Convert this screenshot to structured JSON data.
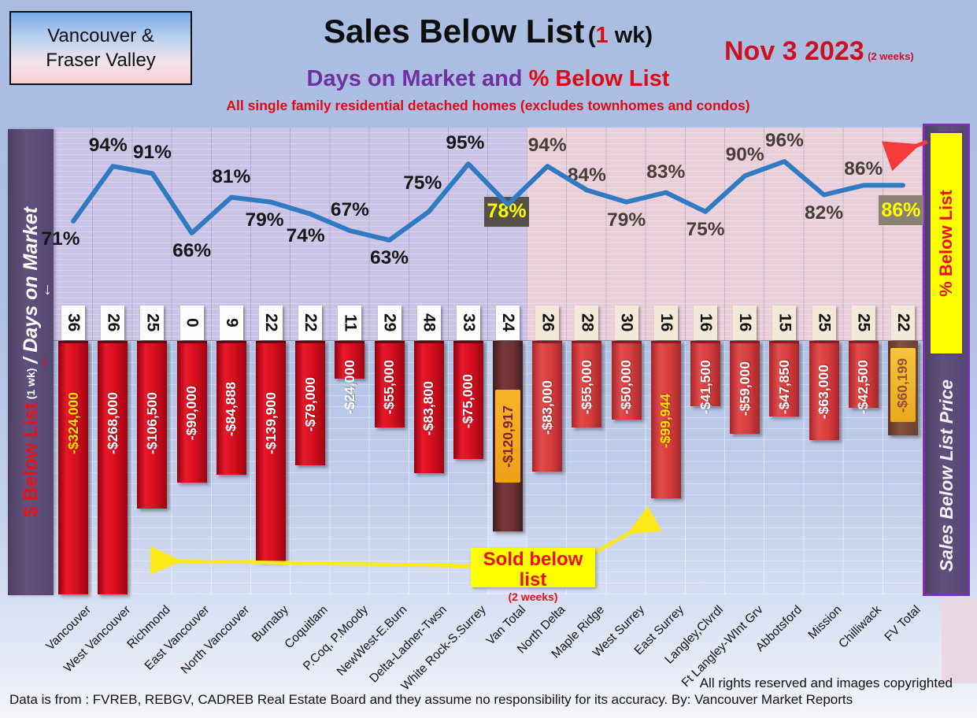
{
  "header": {
    "region_line1": "Vancouver &",
    "region_line2": "Fraser Valley",
    "title_main": "Sales Below List",
    "title_paren_pre": "(",
    "title_week_num": "1",
    "title_paren_post": " wk)",
    "date": "Nov 3  2023",
    "date_note": "(2 weeks)",
    "subtitle_left": "Days on Market and ",
    "subtitle_right": "% Below List",
    "tagline": "All single family residential detached homes (excludes townhomes and condos)"
  },
  "axes": {
    "left_red": "$ Below List",
    "left_small": "(1 wk)",
    "left_white": "/ Days on Market",
    "right_yellow": "% Below List",
    "right_white": "Sales Below List Price"
  },
  "callout": {
    "line1": "Sold below list",
    "line2": "(2 weeks)"
  },
  "footer": {
    "rights": "All rights reserved and  images copyrighted",
    "source": "Data is from : FVREB, REBGV, CADREB Real Estate Board and they assume no responsibility for its accuracy. By: Vancouver Market Reports"
  },
  "chart_data": {
    "type": "combo: line (% below list) over hanging bars ($ below list) with days-on-market value chips",
    "categories": [
      "Vancouver",
      "West Vancouver",
      "Richmond",
      "East Vancouver",
      "North Vancouver",
      "Burnaby",
      "Coquitlam",
      "P.Coq, P.Moody",
      "NewWest-E.Burn",
      "Delta-Ladner-Twsn",
      "White Rock-S.Surrey",
      "Van Total",
      "North Delta",
      "Maple Ridge",
      "West Surrey",
      "East Surrey",
      "Langley,Clvrdl",
      "Ft Langley-WInt Grv",
      "Abbotsford",
      "Mission",
      "Chilliwack",
      "FV Total"
    ],
    "series": [
      {
        "name": "% Below List",
        "values": [
          71,
          94,
          91,
          66,
          81,
          79,
          74,
          67,
          63,
          75,
          95,
          78,
          94,
          84,
          79,
          83,
          75,
          90,
          96,
          82,
          86,
          86
        ]
      },
      {
        "name": "Days on Market",
        "values": [
          36,
          26,
          25,
          0,
          9,
          22,
          22,
          11,
          29,
          48,
          33,
          24,
          26,
          28,
          30,
          16,
          16,
          16,
          15,
          25,
          25,
          22
        ]
      },
      {
        "name": "$ Below List",
        "values": [
          -324000,
          -268000,
          -106500,
          -90000,
          -84888,
          -139900,
          -79000,
          -24000,
          -55000,
          -83800,
          -75000,
          -120917,
          -83000,
          -55000,
          -50000,
          -99944,
          -41500,
          -59000,
          -47850,
          -63000,
          -42500,
          -60199
        ]
      }
    ],
    "bar_labels": [
      "-$324,000",
      "-$268,000",
      "-$106,500",
      "-$90,000",
      "-$84,888",
      "-$139,900",
      "-$79,000",
      "-$24,000",
      "-$55,000",
      "-$83,800",
      "-$75,000",
      "-$120,917",
      "-$83,000",
      "-$55,000",
      "-$50,000",
      "-$99,944",
      "-$41,500",
      "-$59,000",
      "-$47,850",
      "-$63,000",
      "-$42,500",
      "-$60,199"
    ],
    "pct_labels": [
      "71%",
      "94%",
      "91%",
      "66%",
      "81%",
      "79%",
      "74%",
      "67%",
      "63%",
      "75%",
      "95%",
      "78%",
      "94%",
      "84%",
      "79%",
      "83%",
      "75%",
      "90%",
      "96%",
      "82%",
      "86%",
      "86%"
    ],
    "pct_positions": [
      "below",
      "above",
      "above",
      "below",
      "above",
      "below",
      "below",
      "above",
      "below",
      "above",
      "above",
      "box",
      "above",
      "above",
      "below",
      "above",
      "below",
      "above",
      "above",
      "below",
      "above",
      "box"
    ],
    "day_labels": [
      "36",
      "26",
      "25",
      "0",
      "9",
      "22",
      "22",
      "11",
      "29",
      "48",
      "33",
      "24",
      "26",
      "28",
      "30",
      "16",
      "16",
      "16",
      "15",
      "25",
      "25",
      "22"
    ],
    "total_columns": [
      11,
      21
    ],
    "region_split_index": 12,
    "legend": "left lavender band = Vancouver boards, right pink band = Fraser Valley boards",
    "ylim_line_pct": [
      55,
      100
    ],
    "colors": {
      "line": "#2F7AC0",
      "bar_van": "#D00E1E",
      "bar_fv": "#D64040",
      "bar_van_total": "#6B3131",
      "bar_fv_total": "#EFB021",
      "pct_badge_dark": "#55504A",
      "pct_badge_light": "#8A8173",
      "accent_yellow": "#FFFF00",
      "title_purple": "#7030A0",
      "title_red": "#E00B12"
    },
    "highlight_value_columns": {
      "0": "#FFE100",
      "15": "#FFE100"
    }
  }
}
